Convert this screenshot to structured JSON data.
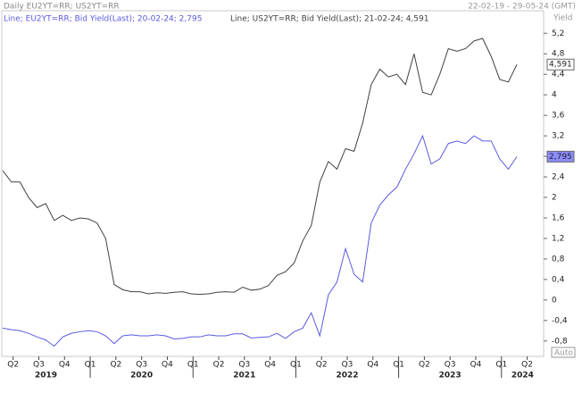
{
  "chart_data": {
    "type": "line",
    "title": "Daily EU2YT=RR; US2YT=RR",
    "subtitle": "22-02-19 - 29-05-24 (GMT)",
    "y_axis_label": "Yield",
    "scale_mode": "Auto",
    "xlim": [
      2019.14,
      2024.41
    ],
    "ylim": [
      -1.1,
      5.64
    ],
    "x": [
      2019.15,
      2019.2333,
      2019.3167,
      2019.4,
      2019.4833,
      2019.5667,
      2019.65,
      2019.7333,
      2019.8167,
      2019.9,
      2019.9833,
      2020.0667,
      2020.15,
      2020.2333,
      2020.3167,
      2020.4,
      2020.4833,
      2020.5667,
      2020.65,
      2020.7333,
      2020.8167,
      2020.9,
      2020.9833,
      2021.0667,
      2021.15,
      2021.2333,
      2021.3167,
      2021.4,
      2021.4833,
      2021.5667,
      2021.65,
      2021.7333,
      2021.8167,
      2021.9,
      2021.9833,
      2022.0667,
      2022.15,
      2022.2333,
      2022.3167,
      2022.4,
      2022.4833,
      2022.5667,
      2022.65,
      2022.7333,
      2022.8167,
      2022.9,
      2022.9833,
      2023.0667,
      2023.15,
      2023.2333,
      2023.3167,
      2023.4,
      2023.4833,
      2023.5667,
      2023.65,
      2023.7333,
      2023.8167,
      2023.9,
      2023.9833,
      2024.0667,
      2024.15
    ],
    "series": [
      {
        "name": "Line; EU2YT=RR; Bid Yield(Last); 20-02-24; 2,795",
        "color": "#5a5ae0",
        "tag_color": "#8c8cff",
        "last_label": "2,795",
        "values": [
          -0.55,
          -0.58,
          -0.6,
          -0.65,
          -0.72,
          -0.78,
          -0.9,
          -0.72,
          -0.65,
          -0.62,
          -0.6,
          -0.62,
          -0.7,
          -0.85,
          -0.7,
          -0.68,
          -0.7,
          -0.7,
          -0.68,
          -0.7,
          -0.76,
          -0.75,
          -0.72,
          -0.72,
          -0.68,
          -0.7,
          -0.7,
          -0.66,
          -0.66,
          -0.74,
          -0.73,
          -0.72,
          -0.65,
          -0.75,
          -0.62,
          -0.55,
          -0.25,
          -0.7,
          0.1,
          0.35,
          1.0,
          0.5,
          0.35,
          1.5,
          1.85,
          2.05,
          2.2,
          2.55,
          2.85,
          3.2,
          2.65,
          2.75,
          3.05,
          3.1,
          3.05,
          3.2,
          3.1,
          3.1,
          2.75,
          2.55,
          2.795
        ]
      },
      {
        "name": "Line; US2YT=RR; Bid Yield(Last); 21-02-24; 4,591",
        "color": "#404040",
        "tag_color": "#ffffff",
        "last_label": "4,591",
        "values": [
          2.52,
          2.3,
          2.3,
          2.0,
          1.8,
          1.88,
          1.55,
          1.65,
          1.55,
          1.6,
          1.58,
          1.5,
          1.2,
          0.3,
          0.2,
          0.16,
          0.16,
          0.12,
          0.14,
          0.13,
          0.15,
          0.16,
          0.12,
          0.11,
          0.12,
          0.15,
          0.16,
          0.15,
          0.25,
          0.19,
          0.21,
          0.28,
          0.48,
          0.55,
          0.72,
          1.15,
          1.45,
          2.3,
          2.7,
          2.55,
          2.95,
          2.9,
          3.45,
          4.2,
          4.5,
          4.35,
          4.4,
          4.2,
          4.8,
          4.05,
          4.0,
          4.4,
          4.9,
          4.85,
          4.9,
          5.05,
          5.1,
          4.75,
          4.3,
          4.25,
          4.591
        ]
      }
    ],
    "yticks": [
      {
        "value": -0.8,
        "label": "-0,8"
      },
      {
        "value": -0.4,
        "label": "-0,4"
      },
      0,
      {
        "value": 0.4,
        "label": "0,4"
      },
      {
        "value": 0.8,
        "label": "0,8"
      },
      {
        "value": 1.2,
        "label": "1,2"
      },
      {
        "value": 1.6,
        "label": "1,6"
      },
      2,
      {
        "value": 2.4,
        "label": "2,4"
      },
      {
        "value": 2.8,
        "label": "2,8"
      },
      {
        "value": 3.2,
        "label": "3,2"
      },
      {
        "value": 3.6,
        "label": "3,6"
      },
      4,
      {
        "value": 4.4,
        "label": "4,4"
      },
      {
        "value": 4.8,
        "label": "4,8"
      },
      {
        "value": 5.2,
        "label": "5,2"
      }
    ],
    "xticks": [
      {
        "value": 2019.25,
        "label": "Q2"
      },
      {
        "value": 2019.5,
        "label": "Q3"
      },
      {
        "value": 2019.75,
        "label": "Q4"
      },
      {
        "value": 2020.0,
        "label": "Q1"
      },
      {
        "value": 2020.25,
        "label": "Q2"
      },
      {
        "value": 2020.5,
        "label": "Q3"
      },
      {
        "value": 2020.75,
        "label": "Q4"
      },
      {
        "value": 2021.0,
        "label": "Q1"
      },
      {
        "value": 2021.25,
        "label": "Q2"
      },
      {
        "value": 2021.5,
        "label": "Q3"
      },
      {
        "value": 2021.75,
        "label": "Q4"
      },
      {
        "value": 2022.0,
        "label": "Q1"
      },
      {
        "value": 2022.25,
        "label": "Q2"
      },
      {
        "value": 2022.5,
        "label": "Q3"
      },
      {
        "value": 2022.75,
        "label": "Q4"
      },
      {
        "value": 2023.0,
        "label": "Q1"
      },
      {
        "value": 2023.25,
        "label": "Q2"
      },
      {
        "value": 2023.5,
        "label": "Q3"
      },
      {
        "value": 2023.75,
        "label": "Q4"
      },
      {
        "value": 2024.0,
        "label": "Q1"
      },
      {
        "value": 2024.25,
        "label": "Q2"
      }
    ],
    "years": [
      2019,
      2020,
      2021,
      2022,
      2023,
      2024
    ],
    "grid": false
  }
}
